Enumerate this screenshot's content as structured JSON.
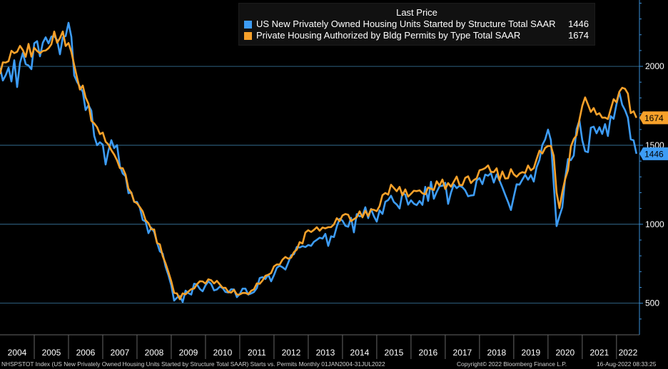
{
  "legend": {
    "title": "Last Price",
    "items": [
      {
        "name": "US New Privately Owned Housing Units Started by Structure Total SAAR",
        "value": "1446",
        "color": "#3d9cf5"
      },
      {
        "name": "Private Housing Authorized by Bldg Permits by Type Total SAAR",
        "value": "1674",
        "color": "#f7a12a"
      }
    ]
  },
  "footer": {
    "source": "NHSPSTOT Index (US New Privately Owned Housing Units Started by Structure Total SAAR) Starts vs. Permits  Monthly 01JAN2004-31JUL2022",
    "copyright": "Copyright© 2022 Bloomberg Finance L.P.",
    "timestamp": "16-Aug-2022 08:33:25"
  },
  "chart_data": {
    "type": "line",
    "title": "Last Price",
    "frequency": "Monthly",
    "x_range": [
      "2004-01",
      "2022-07"
    ],
    "categories": [
      "2004",
      "2005",
      "2006",
      "2007",
      "2008",
      "2009",
      "2010",
      "2011",
      "2012",
      "2013",
      "2014",
      "2015",
      "2016",
      "2017",
      "2018",
      "2019",
      "2020",
      "2021",
      "2022"
    ],
    "y_ticks": [
      500,
      1000,
      1500,
      2000
    ],
    "ylim": [
      300,
      2420
    ],
    "last_labels": [
      {
        "series": "permits",
        "text": "1674",
        "value": 1674,
        "color": "#f7a12a"
      },
      {
        "series": "starts",
        "text": "1446",
        "value": 1446,
        "color": "#3d9cf5"
      }
    ],
    "series": [
      {
        "name": "US New Privately Owned Housing Units Started by Structure Total SAAR",
        "key": "starts",
        "color": "#3d9cf5",
        "anchors": [
          [
            2004.0,
            1910
          ],
          [
            2004.5,
            1950
          ],
          [
            2004.9,
            2050
          ],
          [
            2005.3,
            2080
          ],
          [
            2005.75,
            2120
          ],
          [
            2006.0,
            2200
          ],
          [
            2006.2,
            1990
          ],
          [
            2006.5,
            1760
          ],
          [
            2006.75,
            1590
          ],
          [
            2007.0,
            1430
          ],
          [
            2007.3,
            1500
          ],
          [
            2007.6,
            1320
          ],
          [
            2007.9,
            1150
          ],
          [
            2008.2,
            1000
          ],
          [
            2008.5,
            990
          ],
          [
            2008.8,
            770
          ],
          [
            2009.1,
            530
          ],
          [
            2009.3,
            500
          ],
          [
            2009.5,
            590
          ],
          [
            2009.9,
            570
          ],
          [
            2010.3,
            630
          ],
          [
            2010.6,
            550
          ],
          [
            2011.0,
            570
          ],
          [
            2011.3,
            560
          ],
          [
            2011.9,
            680
          ],
          [
            2012.3,
            730
          ],
          [
            2012.6,
            810
          ],
          [
            2012.9,
            900
          ],
          [
            2013.3,
            900
          ],
          [
            2013.6,
            880
          ],
          [
            2013.9,
            1000
          ],
          [
            2014.3,
            990
          ],
          [
            2014.6,
            1070
          ],
          [
            2014.9,
            1040
          ],
          [
            2015.25,
            1110
          ],
          [
            2015.5,
            1190
          ],
          [
            2015.9,
            1130
          ],
          [
            2016.3,
            1160
          ],
          [
            2016.6,
            1220
          ],
          [
            2016.9,
            1200
          ],
          [
            2017.3,
            1190
          ],
          [
            2017.6,
            1190
          ],
          [
            2017.9,
            1250
          ],
          [
            2018.3,
            1290
          ],
          [
            2018.6,
            1230
          ],
          [
            2018.9,
            1150
          ],
          [
            2019.3,
            1250
          ],
          [
            2019.6,
            1300
          ],
          [
            2019.9,
            1470
          ],
          [
            2020.05,
            1550
          ],
          [
            2020.15,
            1300
          ],
          [
            2020.28,
            940
          ],
          [
            2020.45,
            1220
          ],
          [
            2020.7,
            1460
          ],
          [
            2020.9,
            1640
          ],
          [
            2021.1,
            1450
          ],
          [
            2021.3,
            1650
          ],
          [
            2021.6,
            1580
          ],
          [
            2021.9,
            1680
          ],
          [
            2022.1,
            1760
          ],
          [
            2022.25,
            1780
          ],
          [
            2022.4,
            1580
          ],
          [
            2022.5,
            1600
          ],
          [
            2022.58,
            1446
          ]
        ]
      },
      {
        "name": "Private Housing Authorized by Bldg Permits by Type Total SAAR",
        "key": "permits",
        "color": "#f7a12a",
        "anchors": [
          [
            2004.0,
            2000
          ],
          [
            2004.5,
            2080
          ],
          [
            2004.9,
            2100
          ],
          [
            2005.3,
            2140
          ],
          [
            2005.75,
            2200
          ],
          [
            2006.0,
            2150
          ],
          [
            2006.2,
            1990
          ],
          [
            2006.5,
            1780
          ],
          [
            2006.75,
            1600
          ],
          [
            2007.0,
            1560
          ],
          [
            2007.3,
            1450
          ],
          [
            2007.6,
            1330
          ],
          [
            2007.9,
            1160
          ],
          [
            2008.2,
            1050
          ],
          [
            2008.4,
            1000
          ],
          [
            2008.5,
            950
          ],
          [
            2008.8,
            770
          ],
          [
            2009.1,
            560
          ],
          [
            2009.3,
            540
          ],
          [
            2009.5,
            580
          ],
          [
            2009.9,
            630
          ],
          [
            2010.3,
            650
          ],
          [
            2010.6,
            580
          ],
          [
            2011.0,
            560
          ],
          [
            2011.3,
            580
          ],
          [
            2011.9,
            700
          ],
          [
            2012.3,
            760
          ],
          [
            2012.6,
            840
          ],
          [
            2012.9,
            920
          ],
          [
            2013.3,
            990
          ],
          [
            2013.6,
            960
          ],
          [
            2013.9,
            1050
          ],
          [
            2014.3,
            1040
          ],
          [
            2014.6,
            1060
          ],
          [
            2014.9,
            1070
          ],
          [
            2015.25,
            1180
          ],
          [
            2015.5,
            1240
          ],
          [
            2015.9,
            1190
          ],
          [
            2016.3,
            1220
          ],
          [
            2016.6,
            1230
          ],
          [
            2016.9,
            1250
          ],
          [
            2017.3,
            1280
          ],
          [
            2017.6,
            1270
          ],
          [
            2017.9,
            1320
          ],
          [
            2018.3,
            1350
          ],
          [
            2018.6,
            1310
          ],
          [
            2018.9,
            1330
          ],
          [
            2019.3,
            1330
          ],
          [
            2019.6,
            1390
          ],
          [
            2019.9,
            1470
          ],
          [
            2020.05,
            1550
          ],
          [
            2020.15,
            1460
          ],
          [
            2020.28,
            1080
          ],
          [
            2020.45,
            1230
          ],
          [
            2020.7,
            1500
          ],
          [
            2020.9,
            1650
          ],
          [
            2021.1,
            1780
          ],
          [
            2021.3,
            1730
          ],
          [
            2021.6,
            1660
          ],
          [
            2021.9,
            1740
          ],
          [
            2022.1,
            1880
          ],
          [
            2022.25,
            1860
          ],
          [
            2022.4,
            1730
          ],
          [
            2022.5,
            1690
          ],
          [
            2022.58,
            1674
          ]
        ]
      }
    ]
  }
}
